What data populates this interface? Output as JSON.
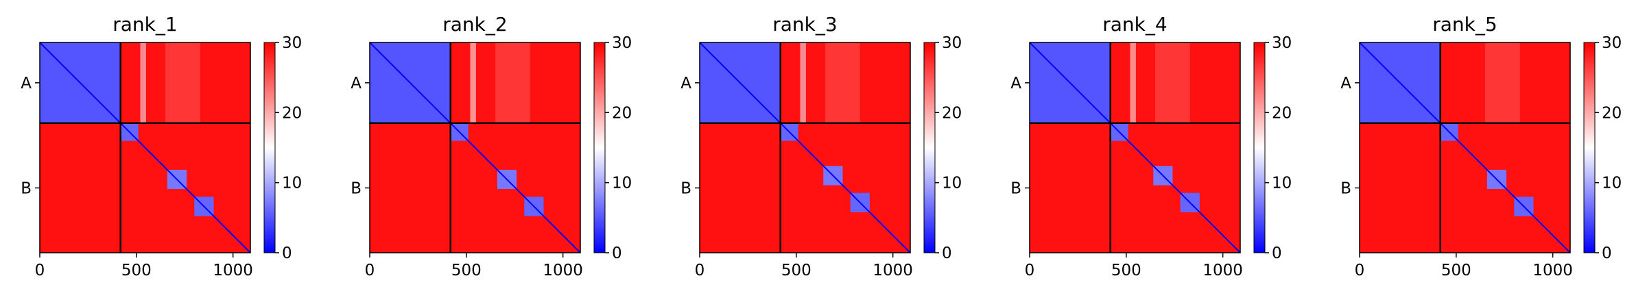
{
  "chart_data": {
    "type": "heatmap",
    "colormap": {
      "name": "bwr",
      "colors": [
        "#0000ff",
        "#ffffff",
        "#ff0000"
      ],
      "range": [
        0,
        30
      ],
      "ticks": [
        "0",
        "10",
        "20",
        "30"
      ]
    },
    "xlim": [
      0,
      1090
    ],
    "x_ticks": [
      {
        "value": 0,
        "label": "0"
      },
      {
        "value": 500,
        "label": "500"
      },
      {
        "value": 1000,
        "label": "1000"
      }
    ],
    "chain_boundary": 418,
    "chains": [
      "A",
      "B"
    ],
    "panels": [
      {
        "title": "rank_1",
        "domains": [
          {
            "start": 0,
            "end": 418,
            "level": 5
          },
          {
            "start": 418,
            "end": 510,
            "level": 6
          },
          {
            "start": 660,
            "end": 760,
            "level": 7
          },
          {
            "start": 800,
            "end": 900,
            "level": 6
          }
        ],
        "inter_chain_level": 29,
        "contact_bands": [
          {
            "start": 520,
            "end": 550,
            "level": 14
          },
          {
            "start": 650,
            "end": 830,
            "level": 25
          }
        ]
      },
      {
        "title": "rank_2",
        "domains": [
          {
            "start": 0,
            "end": 418,
            "level": 5
          },
          {
            "start": 418,
            "end": 510,
            "level": 6
          },
          {
            "start": 660,
            "end": 760,
            "level": 7
          },
          {
            "start": 800,
            "end": 900,
            "level": 6
          }
        ],
        "inter_chain_level": 29,
        "contact_bands": [
          {
            "start": 520,
            "end": 550,
            "level": 15
          },
          {
            "start": 650,
            "end": 830,
            "level": 25
          }
        ]
      },
      {
        "title": "rank_3",
        "domains": [
          {
            "start": 0,
            "end": 418,
            "level": 5
          },
          {
            "start": 418,
            "end": 510,
            "level": 6
          },
          {
            "start": 640,
            "end": 740,
            "level": 7
          },
          {
            "start": 780,
            "end": 880,
            "level": 6
          }
        ],
        "inter_chain_level": 29,
        "contact_bands": [
          {
            "start": 520,
            "end": 550,
            "level": 14
          },
          {
            "start": 650,
            "end": 830,
            "level": 25
          }
        ]
      },
      {
        "title": "rank_4",
        "domains": [
          {
            "start": 0,
            "end": 418,
            "level": 5
          },
          {
            "start": 418,
            "end": 510,
            "level": 6
          },
          {
            "start": 640,
            "end": 740,
            "level": 7
          },
          {
            "start": 780,
            "end": 880,
            "level": 6
          }
        ],
        "inter_chain_level": 29,
        "contact_bands": [
          {
            "start": 520,
            "end": 550,
            "level": 16
          },
          {
            "start": 650,
            "end": 830,
            "level": 25
          }
        ]
      },
      {
        "title": "rank_5",
        "domains": [
          {
            "start": 0,
            "end": 418,
            "level": 5
          },
          {
            "start": 418,
            "end": 510,
            "level": 6
          },
          {
            "start": 660,
            "end": 760,
            "level": 7
          },
          {
            "start": 800,
            "end": 900,
            "level": 6
          }
        ],
        "inter_chain_level": 29,
        "contact_bands": [
          {
            "start": 650,
            "end": 830,
            "level": 25
          }
        ]
      }
    ]
  }
}
